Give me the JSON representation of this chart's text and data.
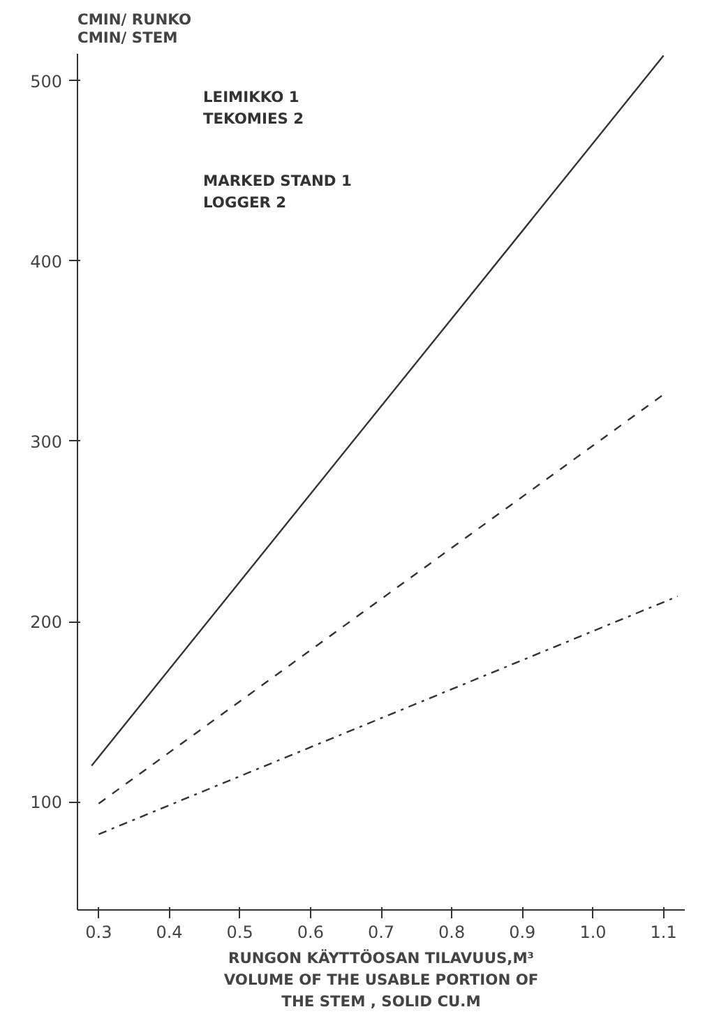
{
  "chart_data": {
    "type": "line",
    "ylabel": "CMIN/ RUNKO\nCMIN/ STEM",
    "xlabel": "RUNGON KÄYTTÖOSAN TILAVUUS,M³\nVOLUME OF THE USABLE PORTION OF\nTHE STEM , SOLID CU.M",
    "annotations": [
      "LEIMIKKO  1\nTEKOMIES  2",
      "MARKED  STAND 1\nLOGGER  2"
    ],
    "series": [
      {
        "color": "#333333",
        "line_style": "solid",
        "x": [
          0.29,
          1.1
        ],
        "values": [
          120,
          514
        ]
      },
      {
        "color": "#333333",
        "line_style": "dashed",
        "x": [
          0.3,
          1.1
        ],
        "values": [
          99,
          326
        ]
      },
      {
        "color": "#333333",
        "line_style": "dashdot",
        "x": [
          0.3,
          1.12
        ],
        "values": [
          82,
          214
        ]
      }
    ],
    "xlim": [
      0.27,
      1.13
    ],
    "ylim": [
      40,
      515
    ],
    "xticks": [
      0.3,
      0.4,
      0.5,
      0.6,
      0.7,
      0.8,
      0.9,
      {
        "value": 1.0,
        "label": "1.0"
      },
      1.1
    ],
    "yticks": [
      100,
      200,
      300,
      400,
      500
    ],
    "grid": false,
    "marker": "none"
  }
}
